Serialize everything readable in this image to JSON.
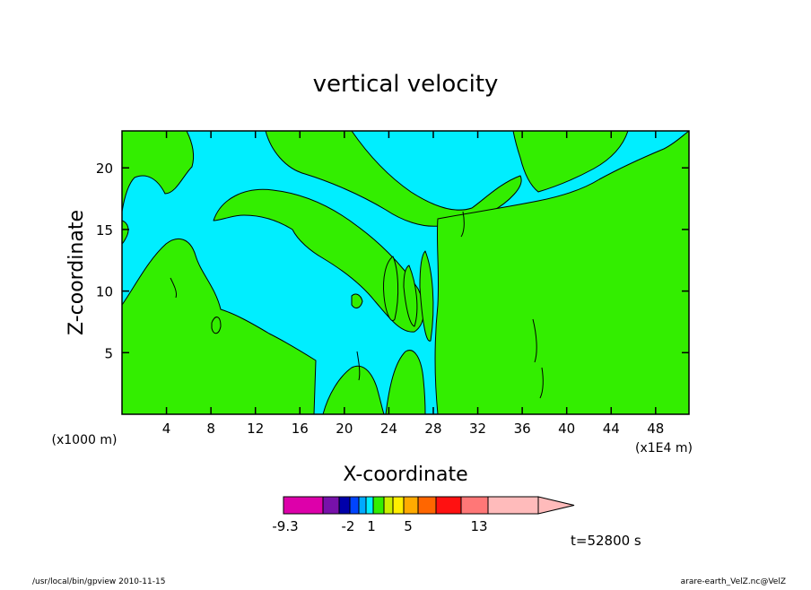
{
  "chart_data": {
    "type": "heatmap",
    "title": "vertical velocity",
    "xlabel": "X-coordinate",
    "ylabel": "Z-coordinate",
    "x_unit_left": "(x1000 m)",
    "x_unit_right": "(x1E4 m)",
    "xlim": [
      0,
      51
    ],
    "ylim": [
      0,
      23
    ],
    "x_ticks": [
      4,
      8,
      12,
      16,
      20,
      24,
      28,
      32,
      36,
      40,
      44,
      48
    ],
    "y_ticks": [
      5,
      10,
      15,
      20
    ],
    "background_level_color": "#00eeff",
    "positive_level_color": "#33ee00",
    "colorbar": {
      "colors": [
        "#dd00aa",
        "#7711aa",
        "#0000aa",
        "#0044ff",
        "#00aaff",
        "#00eeff",
        "#33ee00",
        "#ccee00",
        "#ffee00",
        "#ffaa00",
        "#ff6600",
        "#ff1111",
        "#ff7777",
        "#ffbbbb"
      ],
      "labels": [
        "-9.3",
        "-2",
        "1",
        "5",
        "13"
      ],
      "extend": "right"
    },
    "time_label": "t=52800 s"
  },
  "footer": {
    "left": "/usr/local/bin/gpview   2010-11-15",
    "right": "arare-earth_VelZ.nc@VelZ"
  }
}
